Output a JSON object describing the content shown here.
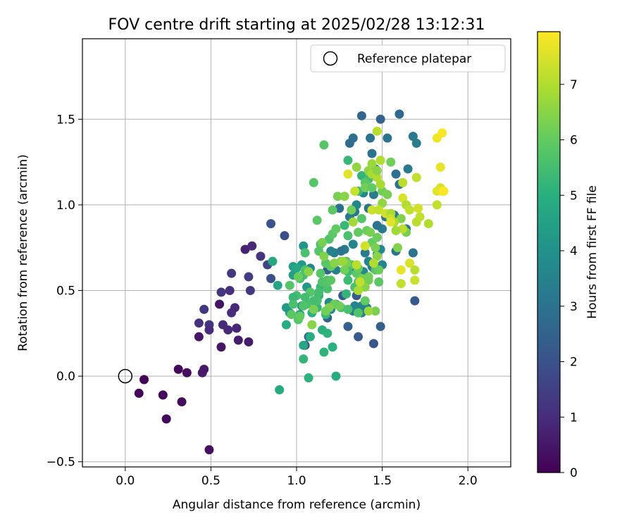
{
  "chart_data": {
    "type": "scatter",
    "title": "FOV centre drift starting at 2025/02/28 13:12:31",
    "xlabel": "Angular distance from reference (arcmin)",
    "ylabel": "Rotation from reference (arcmin)",
    "xlim": [
      -0.25,
      2.25
    ],
    "ylim": [
      -0.53,
      1.97
    ],
    "x_ticks": [
      0.0,
      0.5,
      1.0,
      1.5,
      2.0
    ],
    "x_tick_labels": [
      "0.0",
      "0.5",
      "1.0",
      "1.5",
      "2.0"
    ],
    "y_ticks": [
      -0.5,
      0.0,
      0.5,
      1.0,
      1.5
    ],
    "y_tick_labels": [
      "−0.5",
      "0.0",
      "0.5",
      "1.0",
      "1.5"
    ],
    "grid": true,
    "legend": {
      "placement": "top-right",
      "entries": [
        {
          "label": "Reference platepar",
          "marker": "open-circle",
          "color": "#000000"
        }
      ]
    },
    "reference_point": {
      "x": 0.0,
      "y": 0.0
    },
    "colorbar": {
      "label": "Hours from first FF file",
      "colormap": "viridis",
      "range": [
        0,
        7.95
      ],
      "ticks": [
        0,
        1,
        2,
        3,
        4,
        5,
        6,
        7
      ],
      "tick_labels": [
        "0",
        "1",
        "2",
        "3",
        "4",
        "5",
        "6",
        "7"
      ]
    },
    "points": [
      [
        0.11,
        -0.02,
        0.1
      ],
      [
        0.08,
        -0.1,
        0.1
      ],
      [
        0.22,
        -0.11,
        0.15
      ],
      [
        0.24,
        -0.25,
        0.2
      ],
      [
        0.31,
        0.04,
        0.2
      ],
      [
        0.33,
        -0.15,
        0.25
      ],
      [
        0.36,
        0.02,
        0.3
      ],
      [
        0.49,
        -0.43,
        0.35
      ],
      [
        0.45,
        0.02,
        0.6
      ],
      [
        0.46,
        0.04,
        0.55
      ],
      [
        0.43,
        0.23,
        0.5
      ],
      [
        0.55,
        0.42,
        0.4
      ],
      [
        0.56,
        0.17,
        0.45
      ],
      [
        0.66,
        0.21,
        0.6
      ],
      [
        0.72,
        0.2,
        0.6
      ],
      [
        0.7,
        0.74,
        0.8
      ],
      [
        0.74,
        0.76,
        0.9
      ],
      [
        0.62,
        0.37,
        1.0
      ],
      [
        0.64,
        0.4,
        0.9
      ],
      [
        0.6,
        0.27,
        0.9
      ],
      [
        0.65,
        0.28,
        0.85
      ],
      [
        0.57,
        0.3,
        0.95
      ],
      [
        0.49,
        0.3,
        1.2
      ],
      [
        0.49,
        0.27,
        1.0
      ],
      [
        0.43,
        0.31,
        1.1
      ],
      [
        0.46,
        0.39,
        1.3
      ],
      [
        0.56,
        0.49,
        1.2
      ],
      [
        0.61,
        0.5,
        1.1
      ],
      [
        0.62,
        0.6,
        1.3
      ],
      [
        0.72,
        0.58,
        1.4
      ],
      [
        0.73,
        0.5,
        1.3
      ],
      [
        0.79,
        0.7,
        1.2
      ],
      [
        0.83,
        0.65,
        1.6
      ],
      [
        0.85,
        0.57,
        1.9
      ],
      [
        0.85,
        0.89,
        2.0
      ],
      [
        0.93,
        0.82,
        1.9
      ],
      [
        1.05,
        0.18,
        2.1
      ],
      [
        1.07,
        0.23,
        2.6
      ],
      [
        1.18,
        0.34,
        2.4
      ],
      [
        1.18,
        0.62,
        2.4
      ],
      [
        1.3,
        0.29,
        2.4
      ],
      [
        1.27,
        0.47,
        2.2
      ],
      [
        1.35,
        0.47,
        2.3
      ],
      [
        1.36,
        0.23,
        2.2
      ],
      [
        1.45,
        0.19,
        2.1
      ],
      [
        1.49,
        0.29,
        2.4
      ],
      [
        1.69,
        0.44,
        2.2
      ],
      [
        1.38,
        1.52,
        2.6
      ],
      [
        1.6,
        1.53,
        2.7
      ],
      [
        1.49,
        1.5,
        2.5
      ],
      [
        1.31,
        1.36,
        2.8
      ],
      [
        1.33,
        1.39,
        2.9
      ],
      [
        1.43,
        1.39,
        3.0
      ],
      [
        1.44,
        1.3,
        3.0
      ],
      [
        1.53,
        1.39,
        3.0
      ],
      [
        1.58,
        1.18,
        2.9
      ],
      [
        1.6,
        1.12,
        3.0
      ],
      [
        1.65,
        1.21,
        3.2
      ],
      [
        1.68,
        1.4,
        3.2
      ],
      [
        1.7,
        1.36,
        3.3
      ],
      [
        1.64,
        0.86,
        3.1
      ],
      [
        1.57,
        0.94,
        3.2
      ],
      [
        1.5,
        0.86,
        3.3
      ],
      [
        1.47,
        0.88,
        3.0
      ],
      [
        1.52,
        0.93,
        3.1
      ],
      [
        1.31,
        0.93,
        3.2
      ],
      [
        1.34,
        0.96,
        3.1
      ],
      [
        1.28,
        0.74,
        3.3
      ],
      [
        1.26,
        0.73,
        3.0
      ],
      [
        1.22,
        0.72,
        3.4
      ],
      [
        1.2,
        0.73,
        3.5
      ],
      [
        1.23,
        0.62,
        3.4
      ],
      [
        1.31,
        0.63,
        3.6
      ],
      [
        1.4,
        0.72,
        3.3
      ],
      [
        1.42,
        0.67,
        3.6
      ],
      [
        1.44,
        0.64,
        3.7
      ],
      [
        1.47,
        0.71,
        3.8
      ],
      [
        1.49,
        0.74,
        3.7
      ],
      [
        1.5,
        0.65,
        3.6
      ],
      [
        1.58,
        0.73,
        3.0
      ],
      [
        1.68,
        0.72,
        3.0
      ],
      [
        1.38,
        0.37,
        3.4
      ],
      [
        1.38,
        0.41,
        3.6
      ],
      [
        1.41,
        0.4,
        3.5
      ],
      [
        1.33,
        0.38,
        3.4
      ],
      [
        1.34,
        0.41,
        3.6
      ],
      [
        1.2,
        0.39,
        3.7
      ],
      [
        1.19,
        0.43,
        3.7
      ],
      [
        1.08,
        0.63,
        3.7
      ],
      [
        1.03,
        0.65,
        4.2
      ],
      [
        1.04,
        0.76,
        4.1
      ],
      [
        1.25,
        0.98,
        2.9
      ],
      [
        1.35,
        1.0,
        3.6
      ],
      [
        1.39,
        1.07,
        3.6
      ],
      [
        1.45,
        1.06,
        3.3
      ],
      [
        1.46,
        1.21,
        3.5
      ],
      [
        1.42,
        0.98,
        3.0
      ],
      [
        1.33,
        0.77,
        3.6
      ],
      [
        1.45,
        0.63,
        3.0
      ],
      [
        1.39,
        0.61,
        3.7
      ],
      [
        0.94,
        0.4,
        4.3
      ],
      [
        0.96,
        0.37,
        4.3
      ],
      [
        1.02,
        0.36,
        4.5
      ],
      [
        1.03,
        0.41,
        4.4
      ],
      [
        1.06,
        0.52,
        4.2
      ],
      [
        0.98,
        0.64,
        4.5
      ],
      [
        1.0,
        0.63,
        4.7
      ],
      [
        0.98,
        0.59,
        4.5
      ],
      [
        0.89,
        0.53,
        4.6
      ],
      [
        0.86,
        0.67,
        4.7
      ],
      [
        1.04,
        0.18,
        4.7
      ],
      [
        1.08,
        0.23,
        4.9
      ],
      [
        1.15,
        0.27,
        5.0
      ],
      [
        1.18,
        0.25,
        5.1
      ],
      [
        1.21,
        0.17,
        5.0
      ],
      [
        1.16,
        0.14,
        5.1
      ],
      [
        1.23,
        0.0,
        4.9
      ],
      [
        1.07,
        -0.01,
        5.1
      ],
      [
        1.04,
        0.1,
        5.2
      ],
      [
        0.9,
        -0.08,
        4.8
      ],
      [
        0.94,
        0.3,
        4.9
      ],
      [
        1.09,
        0.37,
        5.0
      ],
      [
        1.12,
        0.4,
        5.2
      ],
      [
        1.17,
        0.36,
        5.3
      ],
      [
        1.13,
        0.47,
        5.1
      ],
      [
        1.14,
        0.52,
        5.3
      ],
      [
        1.23,
        0.42,
        5.0
      ],
      [
        1.26,
        0.4,
        5.5
      ],
      [
        1.3,
        0.39,
        5.6
      ],
      [
        1.36,
        0.37,
        5.7
      ],
      [
        1.29,
        0.48,
        5.2
      ],
      [
        1.3,
        0.56,
        5.4
      ],
      [
        1.34,
        0.52,
        5.6
      ],
      [
        1.36,
        0.55,
        5.7
      ],
      [
        1.35,
        0.6,
        5.9
      ],
      [
        1.42,
        0.56,
        6.2
      ],
      [
        1.48,
        0.55,
        5.9
      ],
      [
        1.46,
        0.62,
        5.8
      ],
      [
        1.28,
        0.88,
        5.3
      ],
      [
        1.3,
        0.82,
        5.6
      ],
      [
        1.29,
        0.67,
        5.6
      ],
      [
        1.32,
        0.65,
        5.9
      ],
      [
        1.3,
        0.61,
        5.4
      ],
      [
        1.3,
        1.26,
        5.3
      ],
      [
        1.38,
        1.17,
        5.2
      ],
      [
        1.42,
        1.15,
        5.5
      ],
      [
        1.36,
        1.08,
        5.3
      ],
      [
        1.4,
        1.13,
        5.9
      ],
      [
        1.4,
        1.1,
        6.2
      ],
      [
        1.44,
        1.1,
        6.0
      ],
      [
        1.5,
        1.08,
        6.2
      ],
      [
        1.53,
        1.06,
        6.3
      ],
      [
        1.55,
        1.25,
        6.2
      ],
      [
        1.61,
        0.92,
        6.4
      ],
      [
        1.64,
        0.84,
        6.3
      ],
      [
        1.59,
        0.75,
        6.4
      ],
      [
        1.36,
        0.84,
        6.0
      ],
      [
        1.38,
        0.92,
        5.8
      ],
      [
        1.41,
        0.85,
        6.1
      ],
      [
        1.43,
        0.84,
        6.3
      ],
      [
        1.44,
        0.78,
        6.0
      ],
      [
        1.47,
        0.81,
        6.1
      ],
      [
        1.46,
        0.75,
        6.3
      ],
      [
        1.36,
        0.63,
        6.1
      ],
      [
        1.38,
        0.57,
        6.3
      ],
      [
        1.4,
        0.52,
        6.5
      ],
      [
        1.42,
        0.58,
        6.2
      ],
      [
        1.46,
        0.38,
        6.3
      ],
      [
        1.21,
        0.97,
        5.9
      ],
      [
        1.12,
        0.91,
        5.9
      ],
      [
        1.1,
        1.13,
        5.8
      ],
      [
        1.16,
        1.35,
        5.8
      ],
      [
        1.14,
        0.77,
        5.6
      ],
      [
        1.19,
        0.8,
        5.7
      ],
      [
        1.21,
        0.83,
        5.9
      ],
      [
        1.23,
        0.86,
        6.0
      ],
      [
        1.2,
        0.64,
        6.0
      ],
      [
        1.18,
        0.56,
        5.6
      ],
      [
        1.15,
        0.55,
        5.7
      ],
      [
        1.13,
        0.49,
        5.5
      ],
      [
        1.12,
        0.44,
        5.6
      ],
      [
        1.1,
        0.44,
        5.5
      ],
      [
        1.08,
        0.49,
        5.8
      ],
      [
        1.06,
        0.42,
        5.6
      ],
      [
        1.05,
        0.46,
        5.5
      ],
      [
        1.04,
        0.41,
        5.7
      ],
      [
        1.0,
        0.47,
        5.5
      ],
      [
        0.98,
        0.46,
        5.3
      ],
      [
        0.96,
        0.53,
        5.8
      ],
      [
        0.98,
        0.42,
        5.6
      ],
      [
        0.97,
        0.36,
        5.9
      ],
      [
        1.01,
        0.33,
        5.8
      ],
      [
        1.02,
        0.57,
        5.6
      ],
      [
        1.04,
        0.59,
        5.5
      ],
      [
        1.05,
        0.72,
        5.6
      ],
      [
        1.05,
        0.62,
        5.7
      ],
      [
        1.13,
        0.73,
        5.8
      ],
      [
        1.14,
        0.6,
        5.8
      ],
      [
        1.17,
        0.66,
        5.9
      ],
      [
        1.18,
        0.51,
        5.6
      ],
      [
        1.18,
        0.55,
        5.8
      ],
      [
        1.2,
        0.56,
        5.9
      ],
      [
        1.26,
        0.67,
        6.3
      ],
      [
        1.22,
        0.66,
        6.5
      ],
      [
        1.29,
        0.66,
        6.3
      ],
      [
        1.28,
        0.62,
        6.2
      ],
      [
        1.25,
        0.41,
        6.2
      ],
      [
        1.22,
        0.42,
        6.1
      ],
      [
        1.19,
        0.4,
        6.4
      ],
      [
        1.17,
        0.38,
        6.2
      ],
      [
        1.1,
        0.39,
        6.3
      ],
      [
        1.09,
        0.3,
        6.5
      ],
      [
        1.02,
        0.35,
        6.0
      ],
      [
        1.01,
        0.58,
        6.1
      ],
      [
        1.07,
        0.61,
        6.5
      ],
      [
        1.15,
        0.78,
        6.3
      ],
      [
        1.16,
        0.7,
        6.4
      ],
      [
        1.24,
        1.05,
        6.3
      ],
      [
        1.28,
        1.05,
        6.5
      ],
      [
        1.32,
        0.97,
        6.2
      ],
      [
        1.33,
        0.9,
        6.8
      ],
      [
        1.35,
        1.22,
        6.6
      ],
      [
        1.42,
        1.2,
        6.6
      ],
      [
        1.44,
        1.24,
        6.7
      ],
      [
        1.44,
        1.18,
        6.9
      ],
      [
        1.47,
        1.16,
        7.0
      ],
      [
        1.49,
        1.12,
        6.9
      ],
      [
        1.5,
        1.01,
        6.6
      ],
      [
        1.44,
        0.97,
        7.3
      ],
      [
        1.48,
        0.97,
        7.2
      ],
      [
        1.52,
        0.95,
        7.4
      ],
      [
        1.55,
        0.95,
        6.9
      ],
      [
        1.55,
        0.92,
        7.3
      ],
      [
        1.57,
        0.9,
        6.9
      ],
      [
        1.62,
        0.86,
        7.1
      ],
      [
        1.62,
        1.04,
        7.5
      ],
      [
        1.64,
        1.0,
        7.0
      ],
      [
        1.66,
        0.97,
        7.2
      ],
      [
        1.71,
        0.98,
        7.4
      ],
      [
        1.7,
        0.9,
        7.1
      ],
      [
        1.72,
        0.93,
        7.2
      ],
      [
        1.77,
        0.89,
        7.0
      ],
      [
        1.82,
        1.0,
        7.2
      ],
      [
        1.84,
        1.1,
        7.5
      ],
      [
        1.82,
        1.08,
        7.6
      ],
      [
        1.85,
        1.08,
        7.7
      ],
      [
        1.86,
        1.08,
        7.9
      ],
      [
        1.82,
        1.39,
        7.8
      ],
      [
        1.85,
        1.42,
        7.9
      ],
      [
        1.84,
        1.22,
        7.7
      ],
      [
        1.7,
        1.16,
        7.2
      ],
      [
        1.62,
        1.13,
        7.1
      ],
      [
        1.47,
        1.43,
        7.1
      ],
      [
        1.47,
        1.2,
        6.5
      ],
      [
        1.49,
        1.26,
        7.0
      ],
      [
        1.3,
        1.18,
        7.6
      ],
      [
        1.34,
        1.08,
        7.3
      ],
      [
        1.4,
        0.76,
        6.9
      ],
      [
        1.47,
        0.7,
        6.5
      ],
      [
        1.48,
        0.62,
        6.1
      ],
      [
        1.61,
        0.62,
        7.7
      ],
      [
        1.66,
        0.66,
        7.5
      ],
      [
        1.69,
        0.62,
        7.1
      ],
      [
        1.69,
        0.56,
        7.3
      ],
      [
        1.61,
        0.54,
        7.2
      ],
      [
        1.4,
        0.44,
        6.0
      ],
      [
        1.36,
        0.5,
        6.9
      ],
      [
        1.42,
        0.38,
        6.7
      ],
      [
        1.27,
        0.67,
        6.7
      ],
      [
        1.35,
        0.65,
        7.1
      ],
      [
        1.37,
        0.55,
        7.2
      ],
      [
        1.4,
        0.76,
        7.4
      ],
      [
        1.45,
        0.66,
        7.0
      ],
      [
        1.55,
        0.9,
        7.6
      ],
      [
        1.58,
        0.85,
        6.8
      ]
    ]
  }
}
